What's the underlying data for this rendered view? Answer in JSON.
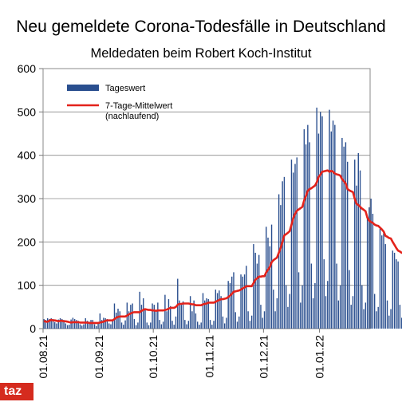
{
  "chart_data": {
    "type": "bar",
    "title": "Neu gemeldete Corona-Todesfälle in Deutschland",
    "subtitle": "Meldedaten beim Robert Koch-Institut",
    "ylim": [
      0,
      600
    ],
    "yticks": [
      0,
      100,
      200,
      300,
      400,
      500,
      600
    ],
    "x_range": [
      "2021-08-01",
      "2022-01-28"
    ],
    "x_tick_labels": [
      "01.08.21",
      "01.09.21",
      "01.10.21",
      "01.11.21",
      "01.12.21",
      "01.01.22"
    ],
    "x_tick_dates": [
      "2021-08-01",
      "2021-09-01",
      "2021-10-01",
      "2021-11-01",
      "2021-12-01",
      "2022-01-01"
    ],
    "legend_position": "top-left",
    "grid": "horizontal",
    "series": [
      {
        "name": "Tageswert",
        "kind": "bar",
        "color": "#2a4f8f",
        "values": [
          22,
          20,
          24,
          22,
          24,
          22,
          15,
          12,
          21,
          24,
          22,
          20,
          12,
          8,
          9,
          21,
          25,
          22,
          20,
          18,
          10,
          7,
          10,
          24,
          18,
          16,
          20,
          20,
          10,
          6,
          11,
          35,
          20,
          25,
          24,
          22,
          12,
          10,
          18,
          58,
          37,
          46,
          40,
          14,
          9,
          19,
          60,
          40,
          55,
          58,
          22,
          8,
          14,
          85,
          55,
          70,
          44,
          14,
          8,
          14,
          58,
          55,
          42,
          60,
          20,
          10,
          16,
          78,
          40,
          68,
          52,
          18,
          9,
          28,
          115,
          65,
          55,
          63,
          20,
          10,
          18,
          75,
          40,
          65,
          35,
          16,
          9,
          14,
          82,
          65,
          70,
          68,
          20,
          9,
          18,
          90,
          82,
          88,
          75,
          28,
          12,
          25,
          110,
          105,
          120,
          130,
          38,
          16,
          28,
          125,
          120,
          125,
          145,
          40,
          18,
          30,
          195,
          175,
          150,
          170,
          55,
          25,
          40,
          235,
          210,
          190,
          240,
          90,
          40,
          70,
          310,
          285,
          340,
          350,
          100,
          50,
          80,
          390,
          360,
          380,
          395,
          130,
          60,
          100,
          460,
          425,
          470,
          430,
          150,
          70,
          105,
          510,
          450,
          500,
          490,
          160,
          75,
          110,
          505,
          455,
          480,
          470,
          150,
          65,
          100,
          440,
          420,
          430,
          385,
          135,
          55,
          75,
          390,
          330,
          405,
          365,
          100,
          45,
          60,
          255,
          280,
          300,
          265,
          80,
          40,
          50,
          230,
          215,
          220,
          195,
          65,
          30,
          45,
          180,
          175,
          160,
          155,
          55,
          25,
          40,
          215,
          200
        ]
      },
      {
        "name": "7-Tage-Mittelwert\n(nachlaufend)",
        "kind": "line",
        "color": "#e3231b",
        "values": [
          18,
          16,
          16,
          18,
          20,
          19,
          19,
          18,
          17,
          18,
          18,
          17,
          17,
          16,
          15,
          14,
          15,
          15,
          15,
          15,
          14,
          14,
          14,
          14,
          14,
          13,
          13,
          13,
          13,
          13,
          13,
          14,
          15,
          16,
          18,
          19,
          19,
          19,
          19,
          22,
          25,
          27,
          28,
          28,
          28,
          28,
          30,
          33,
          35,
          37,
          38,
          38,
          38,
          38,
          41,
          43,
          45,
          44,
          43,
          43,
          42,
          42,
          41,
          42,
          42,
          42,
          42,
          43,
          44,
          46,
          48,
          48,
          48,
          50,
          55,
          57,
          57,
          58,
          58,
          58,
          58,
          57,
          56,
          56,
          54,
          54,
          54,
          54,
          56,
          57,
          58,
          60,
          60,
          60,
          60,
          62,
          64,
          66,
          68,
          68,
          69,
          70,
          73,
          76,
          80,
          85,
          86,
          87,
          88,
          90,
          93,
          95,
          98,
          98,
          98,
          98,
          105,
          113,
          116,
          120,
          120,
          121,
          121,
          130,
          136,
          142,
          153,
          158,
          161,
          164,
          175,
          186,
          200,
          215,
          218,
          221,
          225,
          240,
          255,
          265,
          272,
          275,
          278,
          281,
          296,
          306,
          318,
          322,
          324,
          327,
          330,
          338,
          350,
          355,
          362,
          363,
          364,
          365,
          362,
          364,
          362,
          358,
          356,
          355,
          353,
          345,
          340,
          335,
          322,
          319,
          317,
          315,
          300,
          288,
          285,
          281,
          277,
          274,
          271,
          256,
          249,
          246,
          244,
          240,
          238,
          237,
          233,
          229,
          224,
          214,
          212,
          209,
          208,
          200,
          193,
          186,
          180,
          178,
          175,
          174,
          168,
          164
        ]
      }
    ]
  },
  "brand": {
    "logo_text": "taz",
    "logo_color": "#d52b1e"
  }
}
